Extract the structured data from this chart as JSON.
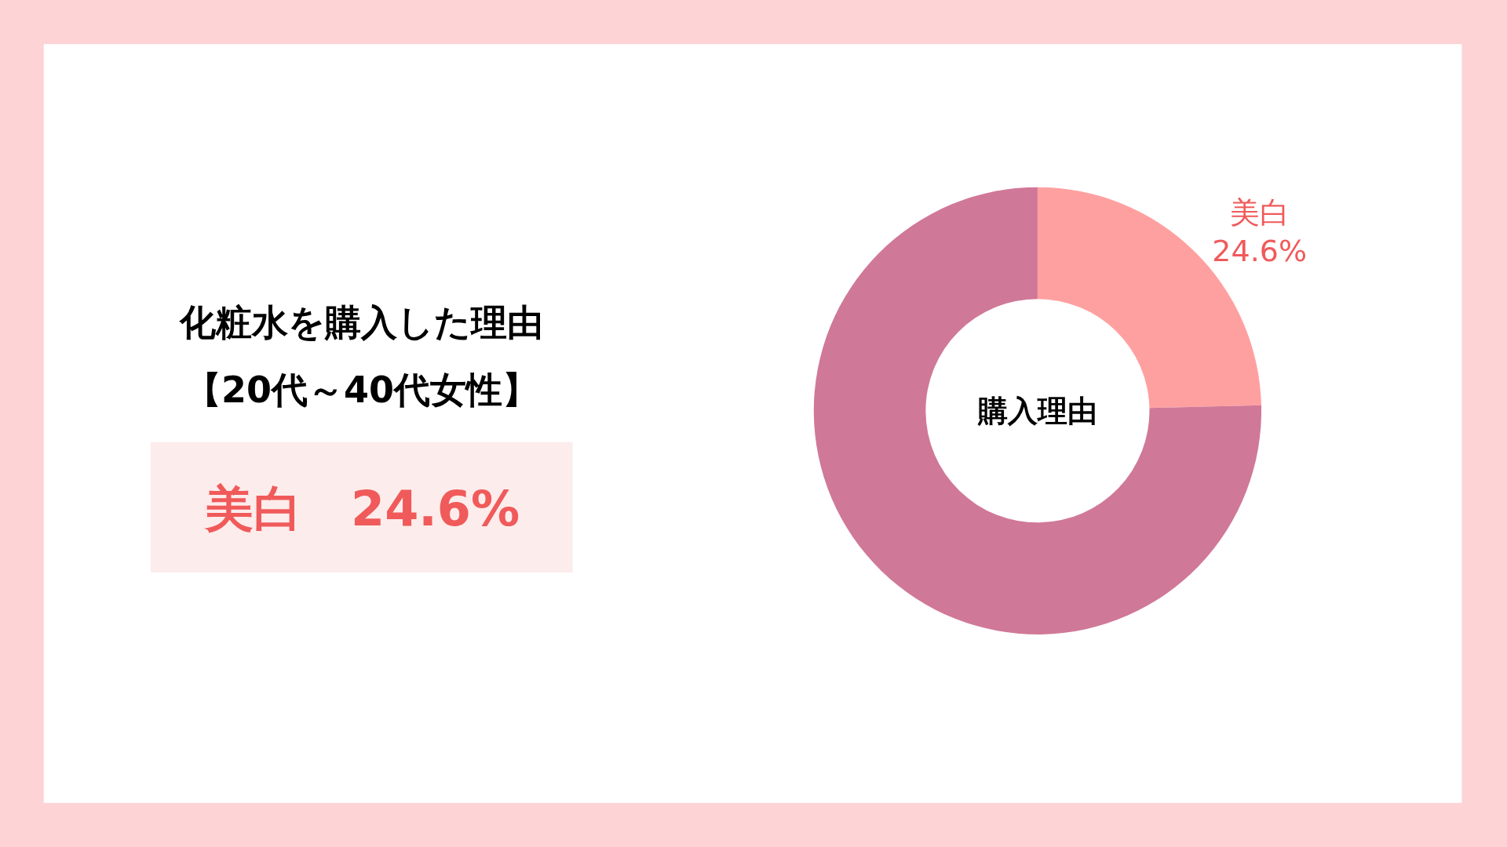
{
  "chart_data": {
    "type": "donut",
    "title": "化粧水を購入した理由",
    "subtitle": "【20代～40代女性】",
    "categories": [
      "美白",
      null
    ],
    "values": [
      24.6,
      75.4
    ],
    "colors": [
      "#ffa0a0",
      "#d07898"
    ],
    "value_labels": [
      "24.6%",
      null
    ],
    "annotations": [
      "美白　24.6%",
      "購入理由"
    ],
    "legend": false
  }
}
